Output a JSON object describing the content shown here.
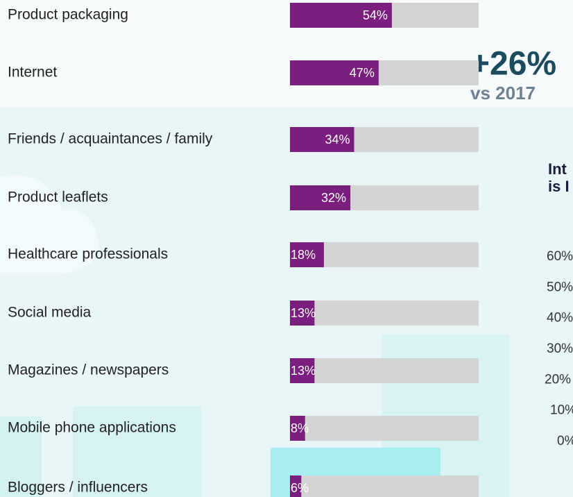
{
  "chart_data": [
    {
      "type": "hbar",
      "categories": [
        "Product packaging",
        "Internet",
        "Friends / acquaintances / family",
        "Product leaflets",
        "Healthcare professionals",
        "Social media",
        "Magazines / newspapers",
        "Mobile phone applications",
        "Bloggers / influencers"
      ],
      "values": [
        54,
        47,
        34,
        32,
        18,
        13,
        13,
        8,
        6
      ],
      "value_labels": [
        "54%",
        "47%",
        "34%",
        "32%",
        "18%",
        "13%",
        "13%",
        "8%",
        "6%"
      ],
      "xlim": [
        0,
        100
      ],
      "color": "#7a1f7e",
      "track_color": "#d3d3d3",
      "headline": "+26%",
      "subheadline": "vs 2017"
    },
    {
      "type": "line",
      "title": [
        "Int",
        "is I"
      ],
      "ylim": [
        0,
        60
      ],
      "yticks": [
        {
          "value": 60,
          "label": "60%"
        },
        {
          "value": 50,
          "label": "50%"
        },
        {
          "value": 40,
          "label": "40%"
        },
        {
          "value": 30,
          "label": "30%"
        },
        {
          "value": 20,
          "label": "20%"
        },
        {
          "value": 10,
          "label": "10%"
        },
        {
          "value": 0,
          "label": "0%"
        }
      ]
    }
  ]
}
